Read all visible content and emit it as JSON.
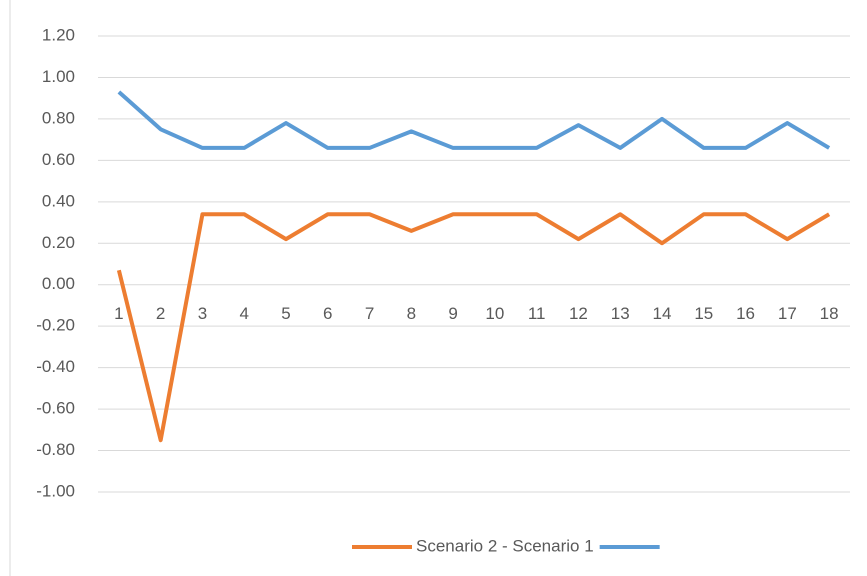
{
  "chart_data": {
    "type": "line",
    "categories": [
      1,
      2,
      3,
      4,
      5,
      6,
      7,
      8,
      9,
      10,
      11,
      12,
      13,
      14,
      15,
      16,
      17,
      18
    ],
    "series": [
      {
        "name": "Scenario 2 - Scenario 1",
        "color": "#ed7d31",
        "values": [
          0.07,
          -0.75,
          0.34,
          0.34,
          0.22,
          0.34,
          0.34,
          0.26,
          0.34,
          0.34,
          0.34,
          0.22,
          0.34,
          0.2,
          0.34,
          0.34,
          0.22,
          0.34
        ]
      },
      {
        "color": "#5b9bd5",
        "values": [
          0.93,
          0.75,
          0.66,
          0.66,
          0.78,
          0.66,
          0.66,
          0.74,
          0.66,
          0.66,
          0.66,
          0.77,
          0.66,
          0.8,
          0.66,
          0.66,
          0.78,
          0.66
        ]
      }
    ],
    "ylim": [
      -1.0,
      1.2
    ],
    "yticks": [
      {
        "value": 1.2,
        "label": "1.20"
      },
      {
        "value": 1.0,
        "label": "1.00"
      },
      {
        "value": 0.8,
        "label": "0.80"
      },
      {
        "value": 0.6,
        "label": "0.60"
      },
      {
        "value": 0.4,
        "label": "0.40"
      },
      {
        "value": 0.2,
        "label": "0.20"
      },
      {
        "value": 0,
        "label": "0.00"
      },
      {
        "value": -0.2,
        "label": "-0.20"
      },
      {
        "value": -0.4,
        "label": "-0.40"
      },
      {
        "value": -0.6,
        "label": "-0.60"
      },
      {
        "value": -0.8,
        "label": "-0.80"
      },
      {
        "value": -1.0,
        "label": "-1.00"
      }
    ],
    "grid": true
  }
}
